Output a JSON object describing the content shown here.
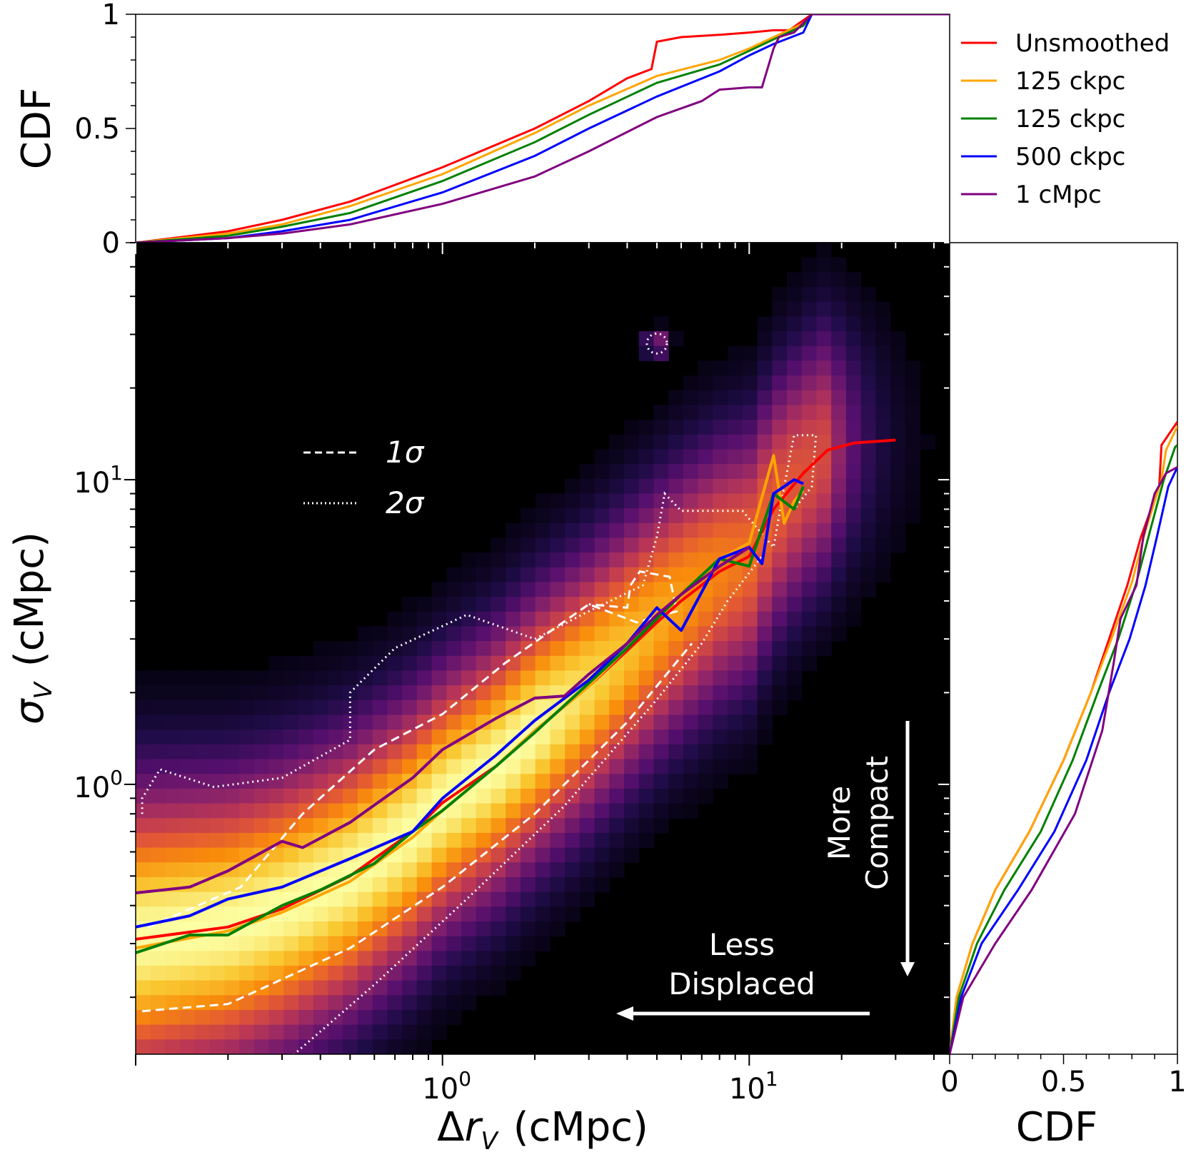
{
  "chart_data": [
    {
      "panel": "main",
      "type": "heatmap",
      "xlabel": "Δr_V (cMpc)",
      "ylabel": "σ_V (cMpc)",
      "x_scale": "log",
      "y_scale": "log",
      "xlim": [
        0.1,
        45
      ],
      "ylim": [
        0.13,
        60
      ],
      "x_major_ticks": [
        {
          "value": 1,
          "base": "10",
          "exp": "0"
        },
        {
          "value": 10,
          "base": "10",
          "exp": "1"
        }
      ],
      "y_major_ticks": [
        {
          "value": 1,
          "base": "10",
          "exp": "0"
        },
        {
          "value": 10,
          "base": "10",
          "exp": "1"
        }
      ],
      "colormap": "inferno",
      "background_color": "#000000",
      "contour_legend": [
        {
          "style": "dashed",
          "label": "1σ"
        },
        {
          "style": "dotted",
          "label": "2σ"
        }
      ],
      "contours_1sigma": [
        [
          [
            0.105,
            0.18
          ],
          [
            0.2,
            0.19
          ],
          [
            0.5,
            0.29
          ],
          [
            1.0,
            0.46
          ],
          [
            2.0,
            0.8
          ],
          [
            4.0,
            1.6
          ],
          [
            6.5,
            2.9
          ]
        ],
        [
          [
            0.11,
            0.34
          ],
          [
            0.22,
            0.46
          ],
          [
            0.35,
            0.8
          ],
          [
            0.6,
            1.3
          ],
          [
            1.0,
            1.7
          ],
          [
            1.6,
            2.5
          ],
          [
            3.0,
            3.9
          ],
          [
            4.3,
            3.4
          ],
          [
            5.8,
            3.7
          ],
          [
            5.5,
            4.8
          ],
          [
            4.4,
            5.0
          ],
          [
            4.1,
            4.5
          ],
          [
            4.0,
            3.8
          ],
          [
            3.0,
            3.9
          ]
        ]
      ],
      "contours_2sigma": [
        [
          [
            0.3,
            0.12
          ],
          [
            0.6,
            0.22
          ],
          [
            1.2,
            0.42
          ],
          [
            2.5,
            0.85
          ],
          [
            5.0,
            1.9
          ],
          [
            7.0,
            2.9
          ],
          [
            8.5,
            4.0
          ],
          [
            11.0,
            5.6
          ]
        ],
        [
          [
            0.105,
            0.8
          ],
          [
            0.105,
            0.9
          ],
          [
            0.12,
            1.12
          ],
          [
            0.18,
            0.98
          ],
          [
            0.3,
            1.05
          ],
          [
            0.5,
            1.4
          ],
          [
            0.5,
            2.0
          ],
          [
            0.7,
            2.8
          ],
          [
            1.2,
            3.6
          ],
          [
            2.0,
            3.0
          ],
          [
            3.0,
            3.7
          ],
          [
            4.5,
            4.5
          ],
          [
            5.0,
            6.5
          ],
          [
            5.3,
            9.0
          ],
          [
            6.0,
            7.9
          ],
          [
            9.5,
            7.9
          ],
          [
            12.0,
            6.0
          ],
          [
            13.0,
            9.5
          ],
          [
            14.0,
            14.0
          ],
          [
            16.5,
            14.0
          ],
          [
            16.0,
            9.5
          ],
          [
            14.0,
            8.0
          ]
        ]
      ],
      "contour_island_2sigma": {
        "center": [
          5.0,
          28.0
        ],
        "size": "small"
      },
      "series": [
        {
          "name": "Unsmoothed",
          "color": "#ff0000",
          "x": [
            0.1,
            0.2,
            0.3,
            0.5,
            0.8,
            1.0,
            1.5,
            2.0,
            3.0,
            4.0,
            5.0,
            6.0,
            8.0,
            10.0,
            12.0,
            15.0,
            18.0,
            22.0,
            30.0
          ],
          "y": [
            0.31,
            0.34,
            0.39,
            0.5,
            0.7,
            0.87,
            1.15,
            1.5,
            2.1,
            2.75,
            3.4,
            4.0,
            5.0,
            5.6,
            8.0,
            10.5,
            12.5,
            13.2,
            13.5
          ]
        },
        {
          "name": "125 ckpc",
          "color": "#ffa500",
          "x": [
            0.1,
            0.2,
            0.3,
            0.5,
            0.8,
            1.0,
            1.5,
            2.0,
            3.0,
            4.0,
            5.0,
            6.0,
            8.0,
            10.0,
            12.0,
            13.0,
            14.0,
            15.0
          ],
          "y": [
            0.29,
            0.33,
            0.38,
            0.48,
            0.67,
            0.82,
            1.15,
            1.5,
            2.1,
            2.8,
            3.6,
            4.2,
            5.5,
            6.2,
            12.0,
            7.2,
            8.5,
            9.2
          ]
        },
        {
          "name": "125 ckpc",
          "color": "#008000",
          "x": [
            0.1,
            0.15,
            0.2,
            0.3,
            0.4,
            0.6,
            0.8,
            1.0,
            1.5,
            2.0,
            3.0,
            4.0,
            5.0,
            6.0,
            8.0,
            10.0,
            12.0,
            14.0,
            15.0
          ],
          "y": [
            0.28,
            0.32,
            0.32,
            0.4,
            0.45,
            0.55,
            0.7,
            0.82,
            1.15,
            1.48,
            2.15,
            2.8,
            3.5,
            4.2,
            5.5,
            5.2,
            9.0,
            8.0,
            9.5
          ]
        },
        {
          "name": "500 ckpc",
          "color": "#0000ff",
          "x": [
            0.1,
            0.15,
            0.2,
            0.3,
            0.5,
            0.8,
            1.0,
            1.5,
            2.0,
            3.0,
            4.0,
            5.0,
            6.0,
            8.0,
            10.0,
            11.0,
            12.0,
            14.0,
            15.0
          ],
          "y": [
            0.34,
            0.37,
            0.42,
            0.46,
            0.57,
            0.7,
            0.9,
            1.25,
            1.62,
            2.2,
            2.9,
            3.8,
            3.2,
            5.5,
            6.0,
            5.3,
            9.0,
            10.0,
            9.7
          ]
        },
        {
          "name": "1 cMpc",
          "color": "#800080",
          "x": [
            0.1,
            0.15,
            0.2,
            0.3,
            0.35,
            0.5,
            0.8,
            1.0,
            1.5,
            2.0,
            2.5,
            3.0,
            4.0,
            5.0,
            6.0,
            8.0,
            10.0
          ],
          "y": [
            0.44,
            0.46,
            0.52,
            0.65,
            0.62,
            0.75,
            1.05,
            1.3,
            1.65,
            1.92,
            1.95,
            2.3,
            2.9,
            3.6,
            4.2,
            5.2,
            6.0
          ]
        }
      ]
    },
    {
      "panel": "top",
      "type": "line",
      "ylabel": "CDF",
      "ylim": [
        0,
        1
      ],
      "y_ticks": [
        "0",
        "0.5",
        "1"
      ],
      "x_scale": "log",
      "series": [
        {
          "name": "Unsmoothed",
          "color": "#ff0000",
          "x": [
            0.1,
            0.2,
            0.3,
            0.5,
            1.0,
            2.0,
            3.0,
            4.0,
            4.8,
            5.0,
            6.0,
            8.0,
            10.0,
            12.0,
            13.5,
            16.0,
            45.0
          ],
          "y": [
            0,
            0.05,
            0.1,
            0.18,
            0.33,
            0.5,
            0.62,
            0.72,
            0.76,
            0.88,
            0.9,
            0.91,
            0.92,
            0.93,
            0.93,
            1.0,
            1.0
          ]
        },
        {
          "name": "125 ckpc",
          "color": "#ffa500",
          "x": [
            0.1,
            0.2,
            0.3,
            0.5,
            1.0,
            2.0,
            3.0,
            5.0,
            8.0,
            10.0,
            12.0,
            15.0,
            16.0,
            45.0
          ],
          "y": [
            0,
            0.04,
            0.08,
            0.16,
            0.3,
            0.48,
            0.6,
            0.73,
            0.8,
            0.85,
            0.9,
            0.96,
            1.0,
            1.0
          ]
        },
        {
          "name": "125 ckpc",
          "color": "#008000",
          "x": [
            0.1,
            0.2,
            0.3,
            0.5,
            1.0,
            2.0,
            3.0,
            5.0,
            8.0,
            10.0,
            12.0,
            15.0,
            16.0,
            45.0
          ],
          "y": [
            0,
            0.03,
            0.07,
            0.13,
            0.27,
            0.44,
            0.56,
            0.7,
            0.78,
            0.84,
            0.89,
            0.95,
            1.0,
            1.0
          ]
        },
        {
          "name": "500 ckpc",
          "color": "#0000ff",
          "x": [
            0.1,
            0.2,
            0.3,
            0.5,
            1.0,
            2.0,
            3.0,
            5.0,
            8.0,
            10.0,
            12.0,
            15.0,
            16.0,
            45.0
          ],
          "y": [
            0,
            0.02,
            0.05,
            0.1,
            0.22,
            0.38,
            0.5,
            0.64,
            0.75,
            0.82,
            0.87,
            0.92,
            1.0,
            1.0
          ]
        },
        {
          "name": "1 cMpc",
          "color": "#800080",
          "x": [
            0.1,
            0.2,
            0.3,
            0.5,
            1.0,
            2.0,
            3.0,
            5.0,
            7.0,
            8.0,
            10.0,
            11.0,
            12.0,
            12.5,
            14.0,
            16.0,
            45.0
          ],
          "y": [
            0,
            0.02,
            0.04,
            0.08,
            0.17,
            0.29,
            0.4,
            0.55,
            0.62,
            0.67,
            0.68,
            0.68,
            0.85,
            0.9,
            0.92,
            1.0,
            1.0
          ]
        }
      ]
    },
    {
      "panel": "right",
      "type": "line",
      "xlabel": "CDF",
      "xlim": [
        0,
        1
      ],
      "x_ticks": [
        "0",
        "0.5",
        "1"
      ],
      "y_scale": "log",
      "series": [
        {
          "name": "Unsmoothed",
          "color": "#ff0000",
          "cdf": [
            0,
            0.03,
            0.1,
            0.2,
            0.35,
            0.5,
            0.62,
            0.7,
            0.78,
            0.84,
            0.92,
            0.93,
            1.0
          ],
          "y": [
            0.13,
            0.2,
            0.3,
            0.45,
            0.7,
            1.2,
            2.0,
            3.0,
            4.5,
            6.5,
            9.5,
            13.0,
            15.5
          ]
        },
        {
          "name": "125 ckpc",
          "color": "#ffa500",
          "cdf": [
            0,
            0.03,
            0.1,
            0.2,
            0.35,
            0.5,
            0.62,
            0.71,
            0.8,
            0.86,
            0.93,
            0.95,
            1.0
          ],
          "y": [
            0.13,
            0.2,
            0.3,
            0.45,
            0.7,
            1.2,
            2.0,
            3.0,
            4.6,
            6.8,
            10.0,
            12.5,
            15.0
          ]
        },
        {
          "name": "125 ckpc",
          "color": "#008000",
          "cdf": [
            0,
            0.04,
            0.12,
            0.24,
            0.4,
            0.54,
            0.65,
            0.74,
            0.82,
            0.88,
            0.94,
            0.99,
            1.0
          ],
          "y": [
            0.13,
            0.2,
            0.3,
            0.45,
            0.7,
            1.2,
            2.0,
            3.0,
            4.6,
            6.8,
            10.0,
            12.8,
            13.0
          ]
        },
        {
          "name": "500 ckpc",
          "color": "#0000ff",
          "cdf": [
            0,
            0.05,
            0.14,
            0.3,
            0.46,
            0.6,
            0.7,
            0.79,
            0.86,
            0.91,
            0.96,
            1.0
          ],
          "y": [
            0.13,
            0.2,
            0.3,
            0.45,
            0.7,
            1.2,
            2.0,
            3.0,
            4.5,
            6.5,
            9.5,
            11.0
          ]
        },
        {
          "name": "1 cMpc",
          "color": "#800080",
          "cdf": [
            0,
            0.06,
            0.2,
            0.36,
            0.55,
            0.67,
            0.72,
            0.75,
            0.82,
            0.85,
            0.9,
            0.95,
            1.0
          ],
          "y": [
            0.13,
            0.2,
            0.3,
            0.45,
            0.8,
            1.5,
            2.5,
            3.5,
            4.5,
            6.5,
            9.0,
            10.5,
            11.0
          ]
        }
      ]
    }
  ],
  "legend": {
    "placement": "top-right",
    "entries": [
      {
        "label": "Unsmoothed",
        "color": "#ff0000"
      },
      {
        "label": "125 ckpc",
        "color": "#ffa500"
      },
      {
        "label": "125 ckpc",
        "color": "#008000"
      },
      {
        "label": "500 ckpc",
        "color": "#0000ff"
      },
      {
        "label": "1 cMpc",
        "color": "#800080"
      }
    ]
  },
  "annotations": {
    "compact_label": [
      "More",
      "Compact"
    ],
    "displaced_label": [
      "Less",
      "Displaced"
    ],
    "contour_1sigma_label": "1σ",
    "contour_2sigma_label": "2σ"
  },
  "axes_text": {
    "main_xlabel_delta": "Δ",
    "main_xlabel_r": "r",
    "main_xlabel_sub": "V",
    "main_xlabel_unit": "(cMpc)",
    "main_ylabel_sigma": "σ",
    "main_ylabel_sub": "V",
    "main_ylabel_unit": "(cMpc)",
    "top_ylabel": "CDF",
    "right_xlabel": "CDF"
  }
}
